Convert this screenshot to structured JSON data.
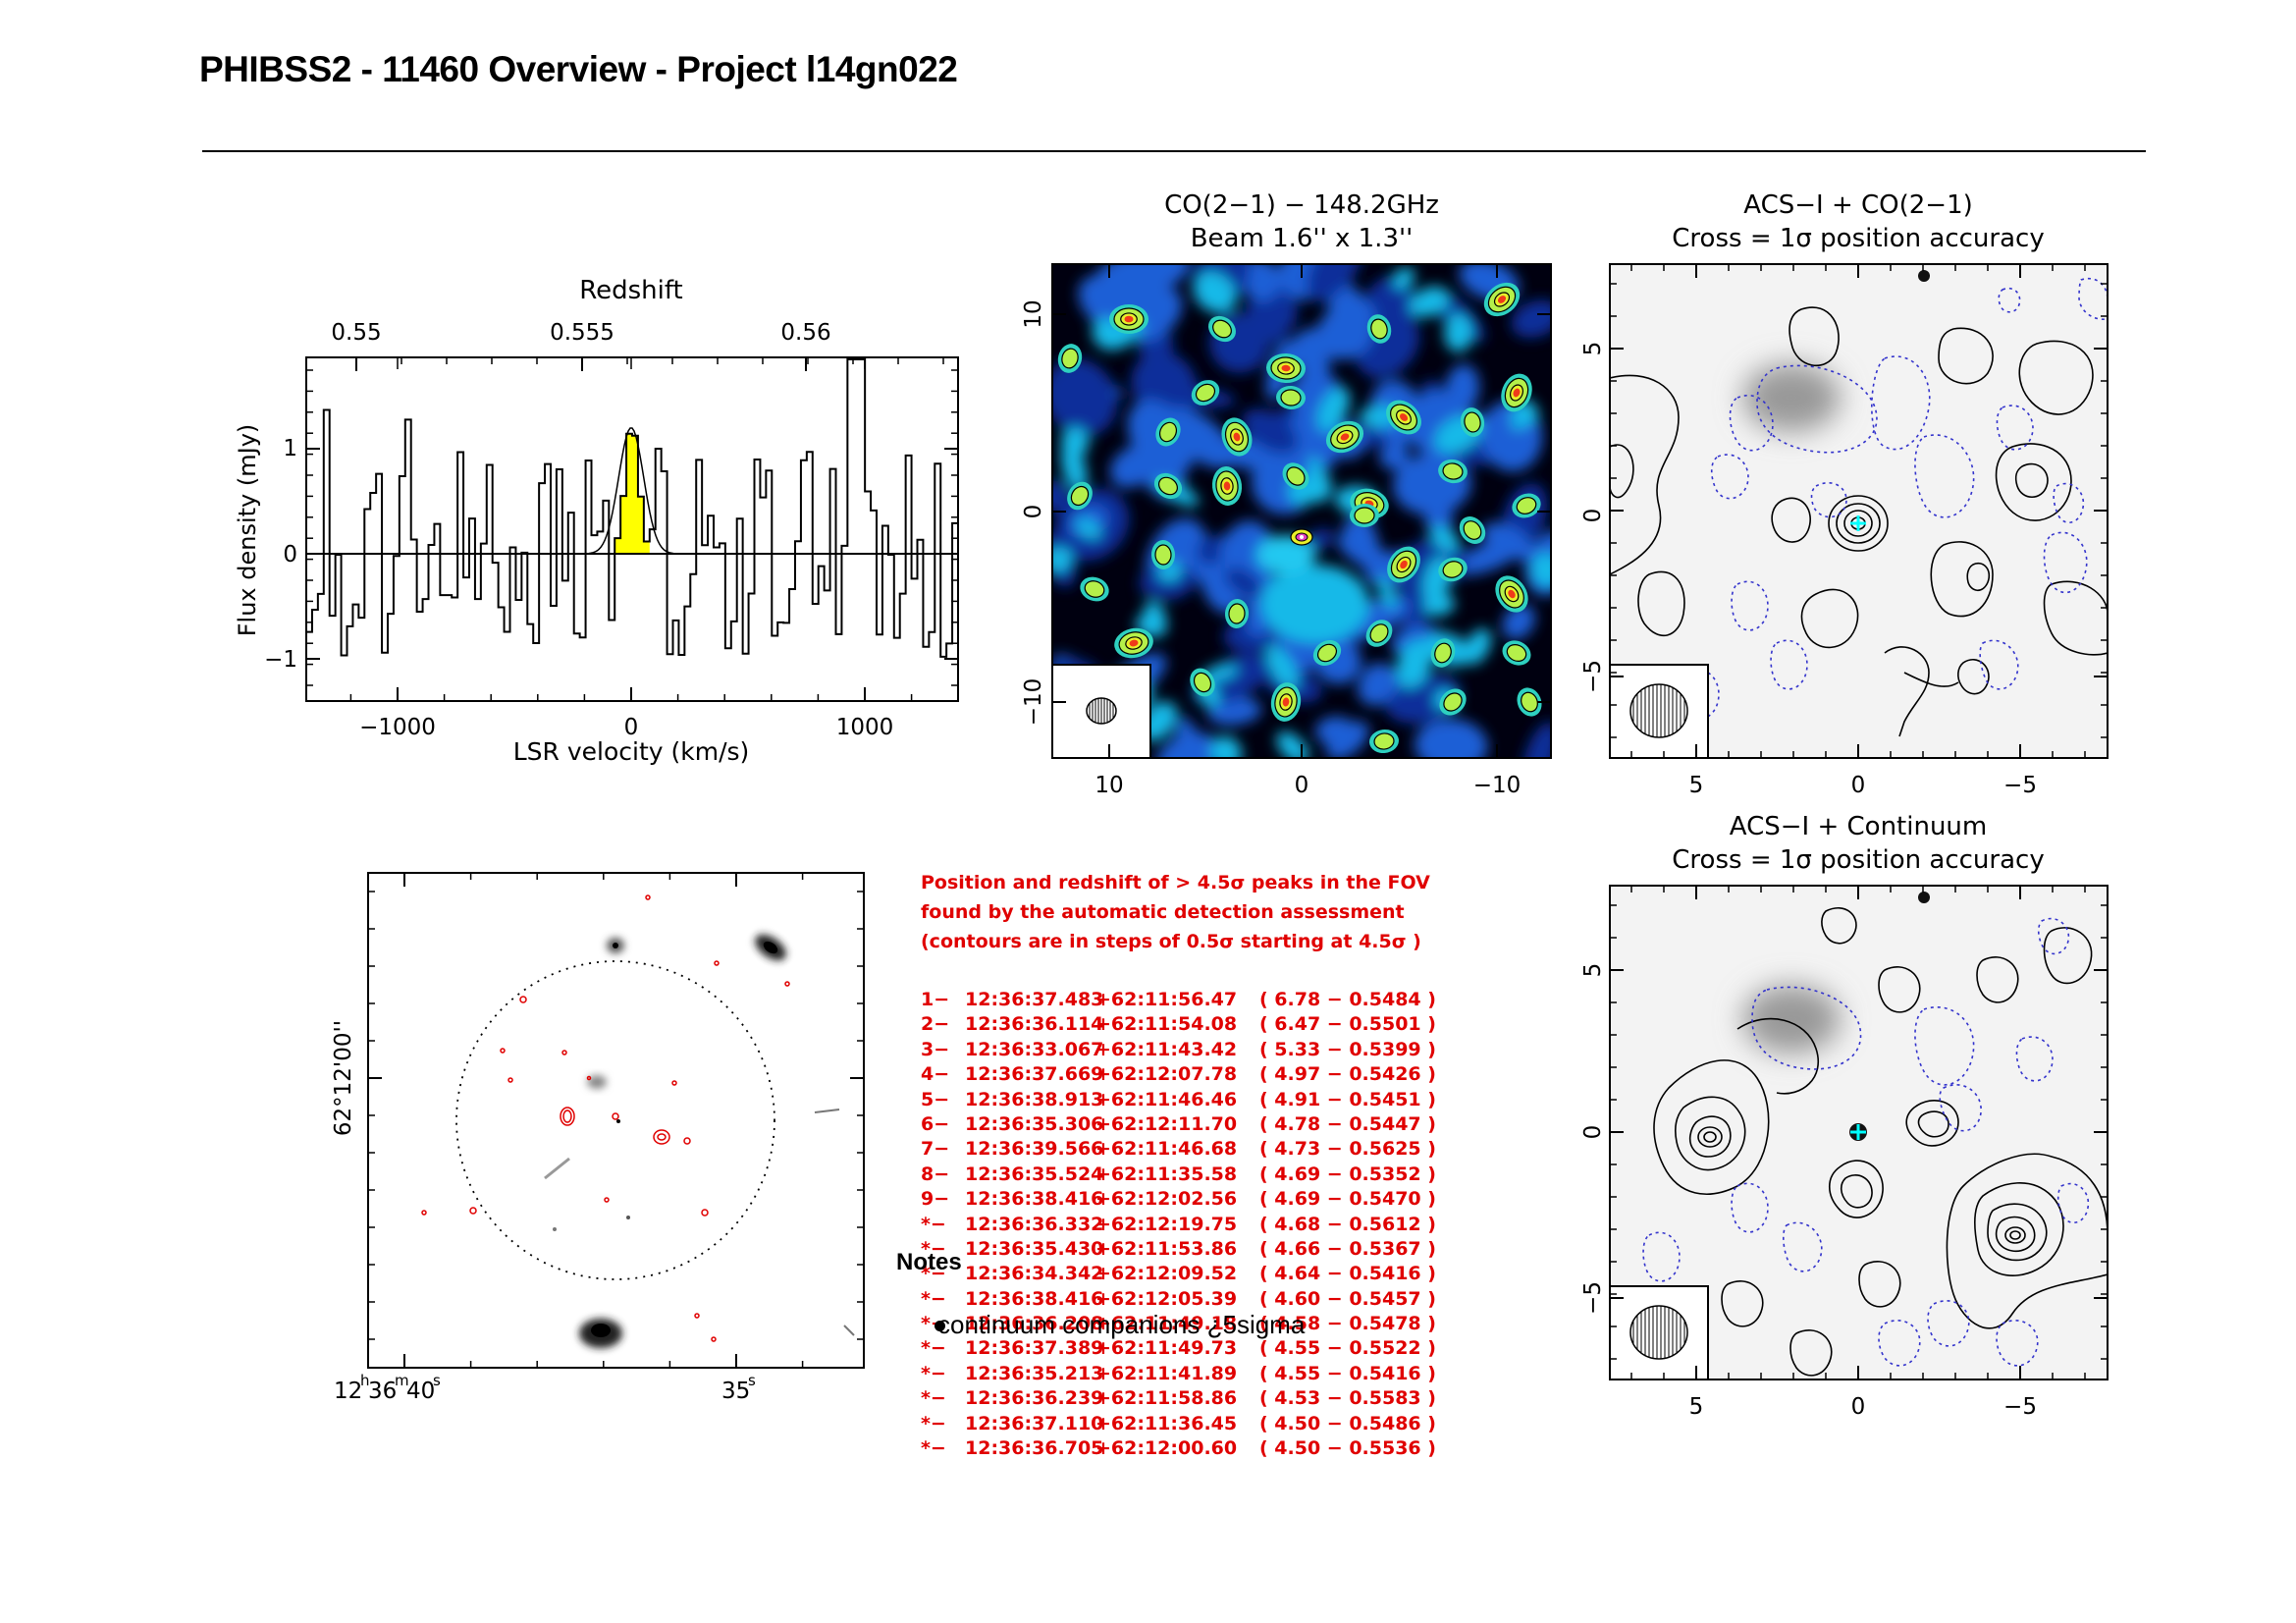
{
  "page": {
    "title": "PHIBSS2 - 11460 Overview - Project l14gn022"
  },
  "spectrum": {
    "top_axis_title": "Redshift",
    "top_ticks": [
      "0.55",
      "0.555",
      "0.56"
    ],
    "ylabel": "Flux density (mJy)",
    "xlabel": "LSR velocity (km/s)",
    "y_ticks": [
      "1",
      "0",
      "−1"
    ],
    "x_ticks": [
      "−1000",
      "0",
      "1000"
    ],
    "line_fill_color": "#ffff00"
  },
  "co_map": {
    "title_line1": "CO(2−1) − 148.2GHz",
    "title_line2": "Beam 1.6'' x 1.3''",
    "x_ticks": [
      "10",
      "0",
      "−10"
    ],
    "y_ticks": [
      "10",
      "0",
      "−10"
    ]
  },
  "acs_co": {
    "title_line1": "ACS−I + CO(2−1)",
    "title_line2": "Cross = 1σ position accuracy",
    "x_ticks": [
      "5",
      "0",
      "−5"
    ],
    "y_ticks": [
      "5",
      "0",
      "−5"
    ]
  },
  "acs_cont": {
    "title_line1": "ACS−I + Continuum",
    "title_line2": "Cross = 1σ position accuracy",
    "x_ticks": [
      "5",
      "0",
      "−5"
    ],
    "y_ticks": [
      "5",
      "0",
      "−5"
    ]
  },
  "fov_image": {
    "ra_label_main": "12",
    "ra_label_h": "h",
    "ra_label_36": "36",
    "ra_label_m": "m",
    "ra_label_40": "40",
    "ra_label_s": "s",
    "ra_label_35": "35",
    "ra_label_35s": "s",
    "dec_label": "62°12'00''"
  },
  "peaks": {
    "intro": [
      "Position and redshift of > 4.5σ peaks in the FOV",
      "found by the automatic detection assessment",
      "(contours are in steps of 0.5σ starting at 4.5σ )"
    ],
    "rows": [
      {
        "id": "1−",
        "ra": "12:36:37.483",
        "dec": "+62:11:56.47",
        "snr": "( 6.78 − 0.5484 )"
      },
      {
        "id": "2−",
        "ra": "12:36:36.114",
        "dec": "+62:11:54.08",
        "snr": "( 6.47 − 0.5501 )"
      },
      {
        "id": "3−",
        "ra": "12:36:33.067",
        "dec": "+62:11:43.42",
        "snr": "( 5.33 − 0.5399 )"
      },
      {
        "id": "4−",
        "ra": "12:36:37.669",
        "dec": "+62:12:07.78",
        "snr": "( 4.97 − 0.5426 )"
      },
      {
        "id": "5−",
        "ra": "12:36:38.913",
        "dec": "+62:11:46.46",
        "snr": "( 4.91 − 0.5451 )"
      },
      {
        "id": "6−",
        "ra": "12:36:35.306",
        "dec": "+62:12:11.70",
        "snr": "( 4.78 − 0.5447 )"
      },
      {
        "id": "7−",
        "ra": "12:36:39.566",
        "dec": "+62:11:46.68",
        "snr": "( 4.73 − 0.5625 )"
      },
      {
        "id": "8−",
        "ra": "12:36:35.524",
        "dec": "+62:11:35.58",
        "snr": "( 4.69 − 0.5352 )"
      },
      {
        "id": "9−",
        "ra": "12:36:38.416",
        "dec": "+62:12:02.56",
        "snr": "( 4.69 − 0.5470 )"
      },
      {
        "id": "*−",
        "ra": "12:36:36.332",
        "dec": "+62:12:19.75",
        "snr": "( 4.68 − 0.5612 )"
      },
      {
        "id": "*−",
        "ra": "12:36:35.430",
        "dec": "+62:11:53.86",
        "snr": "( 4.66 − 0.5367 )"
      },
      {
        "id": "*−",
        "ra": "12:36:34.342",
        "dec": "+62:12:09.52",
        "snr": "( 4.64 − 0.5416 )"
      },
      {
        "id": "*−",
        "ra": "12:36:38.416",
        "dec": "+62:12:05.39",
        "snr": "( 4.60 − 0.5457 )"
      },
      {
        "id": "*−",
        "ra": "12:36:36.208",
        "dec": "+62:11:49.18",
        "snr": "( 4.58 − 0.5478 )"
      },
      {
        "id": "*−",
        "ra": "12:36:37.389",
        "dec": "+62:11:49.73",
        "snr": "( 4.55 − 0.5522 )"
      },
      {
        "id": "*−",
        "ra": "12:36:35.213",
        "dec": "+62:11:41.89",
        "snr": "( 4.55 − 0.5416 )"
      },
      {
        "id": "*−",
        "ra": "12:36:36.239",
        "dec": "+62:11:58.86",
        "snr": "( 4.53 − 0.5583 )"
      },
      {
        "id": "*−",
        "ra": "12:36:37.110",
        "dec": "+62:11:36.45",
        "snr": "( 4.50 − 0.5486 )"
      },
      {
        "id": "*−",
        "ra": "12:36:36.705",
        "dec": "+62:12:00.60",
        "snr": "( 4.50 − 0.5536 )"
      }
    ]
  },
  "notes": {
    "heading": "Notes",
    "item": "continuum companions ¿5sigma"
  },
  "colors": {
    "peaks_text": "#e00000",
    "contour_negative": "#3333cc",
    "cross": "#00ffff"
  }
}
